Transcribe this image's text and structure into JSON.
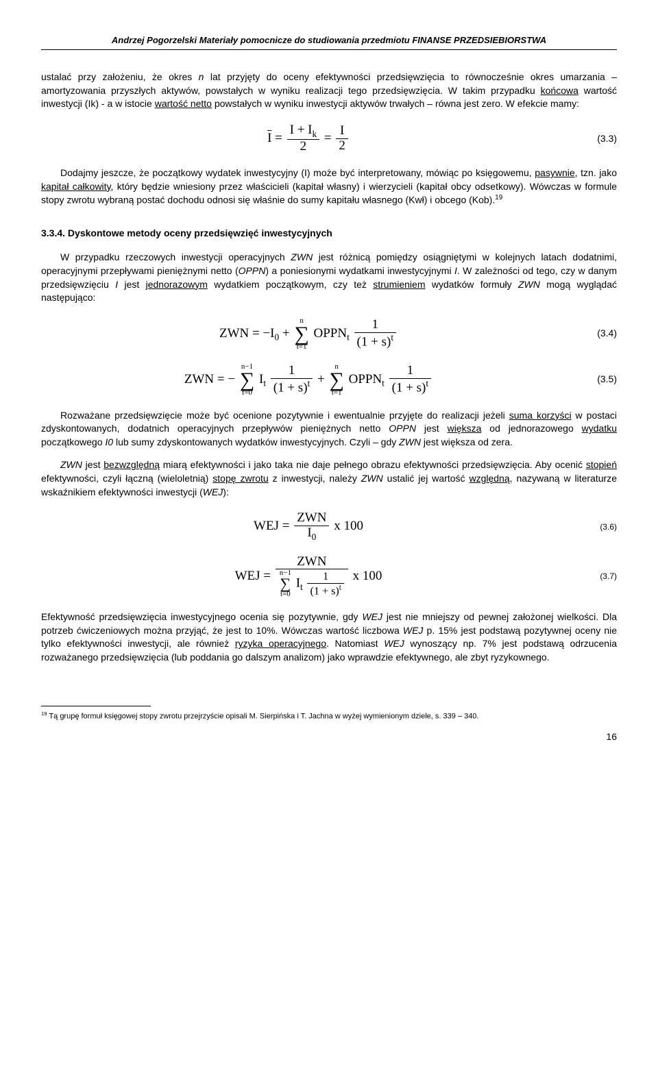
{
  "header": "Andrzej Pogorzelski   Materiały pomocnicze do studiowania przedmiotu FINANSE PRZEDSIEBIORSTWA",
  "para1_a": "ustalać przy założeniu, że okres ",
  "para1_n": "n",
  "para1_b": " lat przyjęty do oceny efektywności przedsięwzięcia to równocześnie okres umarzania – amortyzowania przyszłych aktywów, powstałych w wyniku realizacji tego przedsięwzięcia. W takim przypadku ",
  "para1_c": "końcowa",
  "para1_d": " wartość inwestycji (Ik) -   a w istocie ",
  "para1_e": "wartość netto",
  "para1_f": " powstałych w wyniku inwestycji aktywów trwałych – równa jest zero. W efekcie mamy:",
  "eq33_num": "(3.3)",
  "para2_a": "Dodajmy jeszcze, że początkowy wydatek inwestycyjny (I) może być interpretowany, mówiąc po księgowemu, ",
  "para2_b": "pasywnie",
  "para2_c": ", tzn. jako ",
  "para2_d": "kapitał całkowity",
  "para2_e": ", który będzie wniesiony przez właścicieli (kapitał własny) i wierzycieli (kapitał obcy odsetkowy). Wówczas w formule stopy zwrotu wybraną postać dochodu odnosi się właśnie do sumy kapitału własnego (Kwł) i obcego (Kob).",
  "fn19_marker": "19",
  "heading334": "3.3.4. Dyskontowe metody oceny przedsięwzięć inwestycyjnych",
  "para3_a": "W przypadku rzeczowych inwestycji operacyjnych ",
  "para3_b": "ZWN",
  "para3_c": " jest różnicą pomiędzy osiągniętymi  w kolejnych latach dodatnimi, operacyjnymi przepływami pieniężnymi netto (",
  "para3_d": "OPPN",
  "para3_e": ") a poniesionymi wydatkami inwestycyjnymi ",
  "para3_f": "I",
  "para3_g": ". W zależności od tego, czy w danym przedsięwzięciu ",
  "para3_h": "I",
  "para3_i": " jest ",
  "para3_j": "jednorazowym",
  "para3_k": " wydatkiem początkowym,  czy też ",
  "para3_l": "strumieniem",
  "para3_m": " wydatków formuły ",
  "para3_n": "ZWN",
  "para3_o": " mogą wyglądać następująco:",
  "eq34_num": "(3.4)",
  "eq35_num": "(3.5)",
  "para4_a": "Rozważane przedsięwzięcie może być ocenione pozytywnie i ewentualnie przyjęte do realizacji jeżeli ",
  "para4_b": "suma korzyści",
  "para4_c": " w postaci zdyskontowanych, dodatnich operacyjnych przepływów pieniężnych netto ",
  "para4_d": "OPPN",
  "para4_e": " jest ",
  "para4_f": "większa",
  "para4_g": " od jednorazowego ",
  "para4_h": "wydatku",
  "para4_i": " początkowego ",
  "para4_j": "I0",
  "para4_k": "  lub sumy zdyskontowanych wydatków inwestycyjnych.  Czyli – gdy ",
  "para4_l": "ZWN",
  "para4_m": " jest większa od zera.",
  "para5_a": "ZWN",
  "para5_b": "  jest ",
  "para5_c": "bezwzględną",
  "para5_d": " miarą efektywności i jako taka nie daje pełnego obrazu efektywności przedsięwzięcia. Aby ocenić ",
  "para5_e": "stopień",
  "para5_f": " efektywności, czyli łączną (wieloletnią) ",
  "para5_g": "stopę zwrotu",
  "para5_h": " z inwestycji, należy ",
  "para5_i": "ZWN",
  "para5_j": " ustalić jej wartość ",
  "para5_k": "względną",
  "para5_l": ", nazywaną w literaturze wskaźnikiem efektywności inwestycji (",
  "para5_m": "WEJ",
  "para5_n": "):",
  "eq36_num": "(3.6)",
  "eq37_num": "(3.7)",
  "para6_a": "Efektywność przedsięwzięcia inwestycyjnego ocenia się pozytywnie, gdy ",
  "para6_b": "WEJ",
  "para6_c": " jest nie mniejszy od pewnej założonej wielkości. Dla potrzeb ćwiczeniowych można przyjąć, że jest to 10%. Wówczas wartość liczbowa ",
  "para6_d": "WEJ",
  "para6_e": "   p. 15% jest podstawą pozytywnej oceny nie tylko efektywności inwestycji, ale również ",
  "para6_f": "ryzyka operacyjnego",
  "para6_g": ".  Natomiast ",
  "para6_h": "WEJ",
  "para6_i": " wynoszący np.  7% jest podstawą odrzucenia rozważanego przedsięwzięcia (lub poddania go dalszym analizom) jako wprawdzie efektywnego, ale zbyt ryzykownego.",
  "footnote_num": "19",
  "footnote_text": " Tą grupę formuł księgowej stopy zwrotu przejrzyście opisali   M. Sierpińska i T. Jachna w wyżej wymienionym dziele, s. 339 – 340.",
  "page_number": "16"
}
